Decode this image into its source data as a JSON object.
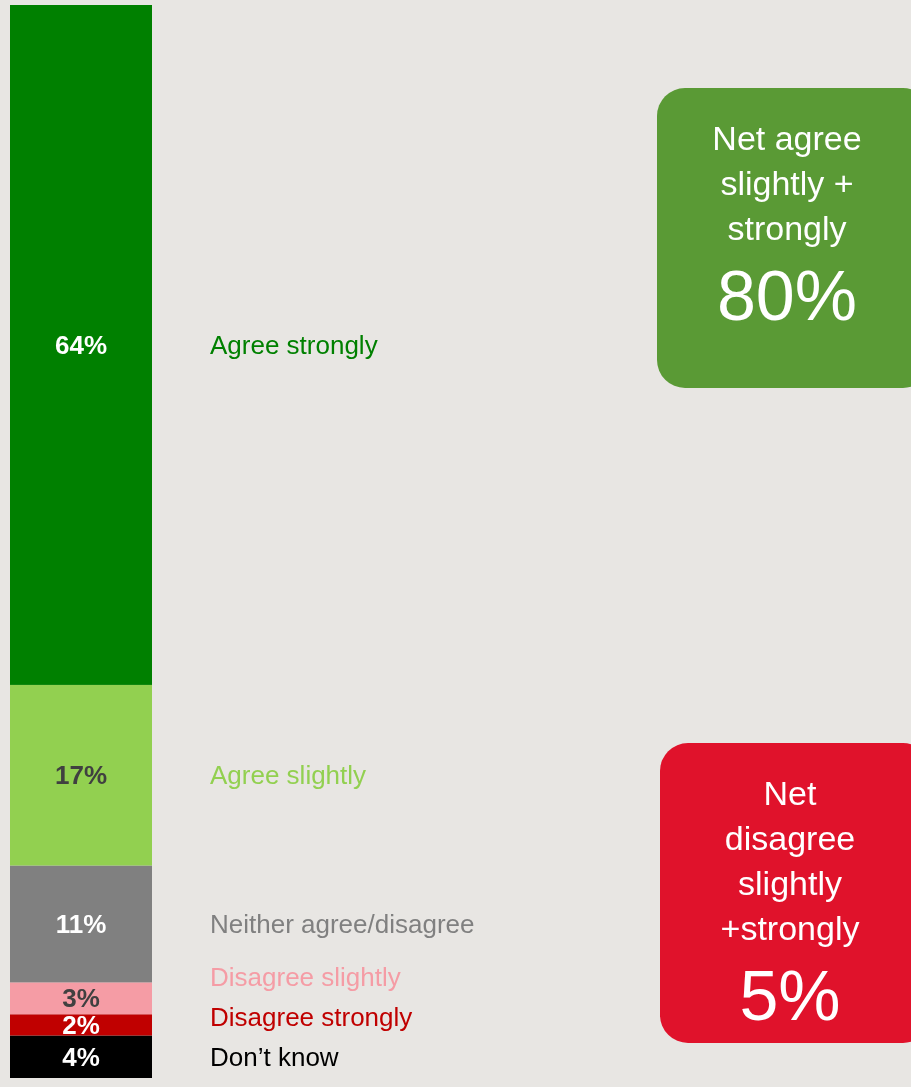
{
  "chart_data": {
    "type": "bar",
    "stacked": true,
    "categories": [
      null
    ],
    "legend": false,
    "series": [
      {
        "name": "Don’t know",
        "color": "#000000",
        "values": [
          4
        ],
        "value_labels": [
          "4%"
        ]
      },
      {
        "name": "Disagree strongly",
        "color": "#c00000",
        "values": [
          2
        ],
        "value_labels": [
          "2%"
        ]
      },
      {
        "name": "Disagree slightly",
        "color": "#f59ca5",
        "values": [
          3
        ],
        "value_labels": [
          "3%"
        ]
      },
      {
        "name": "Neither agree/disagree",
        "color": "#808080",
        "values": [
          11
        ],
        "value_labels": [
          "11%"
        ]
      },
      {
        "name": "Agree slightly",
        "color": "#92d050",
        "values": [
          17
        ],
        "value_labels": [
          "17%"
        ]
      },
      {
        "name": "Agree strongly",
        "color": "#008000",
        "values": [
          64
        ],
        "value_labels": [
          "64%"
        ]
      }
    ],
    "annotations": [
      "Net agree\nslightly +\nstrongly\n80%",
      "Net\ndisagree\nslightly\n+strongly\n5%"
    ]
  }
}
